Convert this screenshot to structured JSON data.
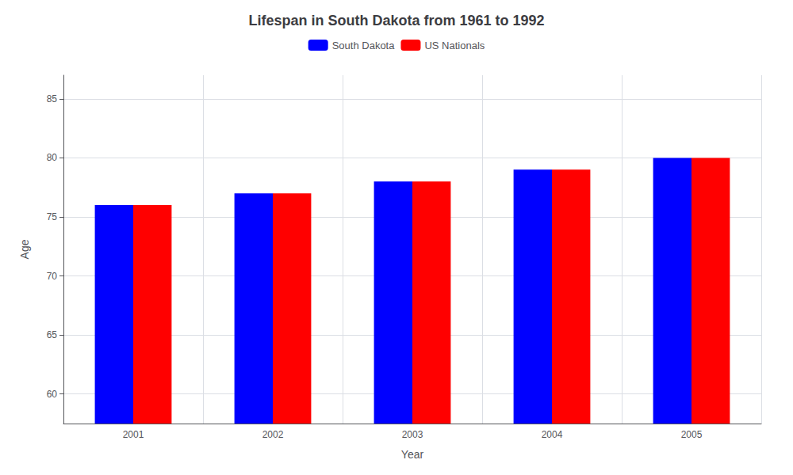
{
  "chart_data": {
    "type": "bar",
    "title": "Lifespan in South Dakota from 1961 to 1992",
    "xlabel": "Year",
    "ylabel": "Age",
    "categories": [
      "2001",
      "2002",
      "2003",
      "2004",
      "2005"
    ],
    "series": [
      {
        "name": "South Dakota",
        "color": "#0000ff",
        "values": [
          76,
          77,
          78,
          79,
          80
        ]
      },
      {
        "name": "US Nationals",
        "color": "#ff0000",
        "values": [
          76,
          77,
          78,
          79,
          80
        ]
      }
    ],
    "ylim": [
      57.5,
      87
    ],
    "yticks": [
      60,
      65,
      70,
      75,
      80,
      85
    ],
    "grid": true,
    "legend": "top"
  }
}
